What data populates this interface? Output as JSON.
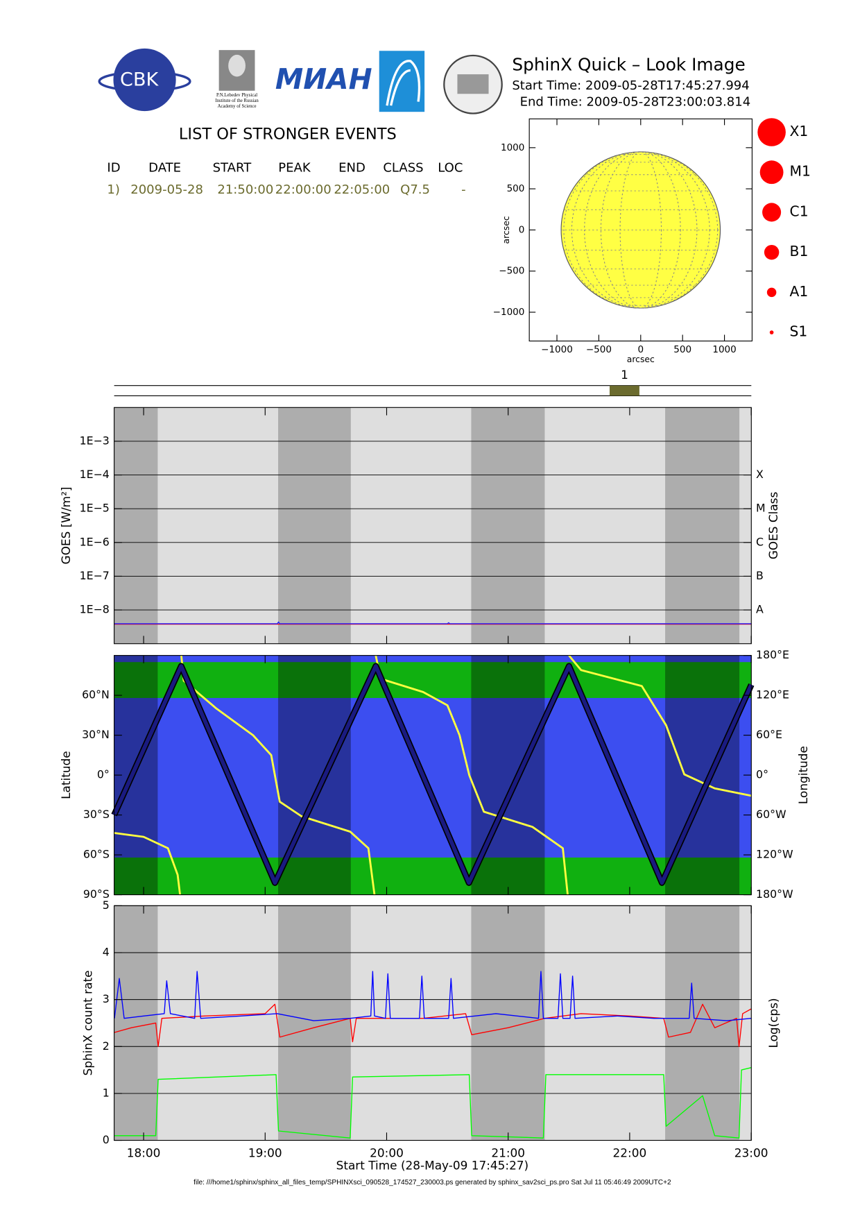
{
  "header": {
    "title": "SphinX Quick – Look Image",
    "start_time": "Start Time: 2009-05-28T17:45:27.994",
    "end_time": "End Time: 2009-05-28T23:00:03.814"
  },
  "logos": {
    "cbk": "CBK",
    "lebedev": [
      "P.N.Lebedev Physical",
      "Institute of the Russian",
      "Academy of Science"
    ],
    "mian": "МИАН"
  },
  "events_table": {
    "title": "LIST OF STRONGER EVENTS",
    "columns": [
      "ID",
      "DATE",
      "START",
      "PEAK",
      "END",
      "CLASS",
      "LOC"
    ],
    "rows": [
      [
        "1)",
        "2009-05-28",
        "21:50:00",
        "22:00:00",
        "22:05:00",
        "Q7.5",
        "-"
      ]
    ]
  },
  "flare_classes": [
    "X1",
    "M1",
    "C1",
    "B1",
    "A1",
    "S1"
  ],
  "chart_data": [
    {
      "type": "sun_disk",
      "xlabel": "arcsec",
      "ylabel": "arcsec",
      "xlim": [
        -1330,
        1330
      ],
      "ylim": [
        -1350,
        1350
      ],
      "xticks": [
        {
          "value": -1000,
          "label": "−1000"
        },
        {
          "value": -500,
          "label": "−500"
        },
        0,
        500,
        1000
      ],
      "yticks": [
        {
          "value": -1000,
          "label": "−1000"
        },
        {
          "value": -500,
          "label": "−500"
        },
        0,
        500,
        1000
      ],
      "radius": 950,
      "color": "#ffff44"
    },
    {
      "type": "timeline",
      "events": [
        {
          "label": "1",
          "start": 21.835,
          "end": 22.08
        }
      ],
      "color": "#6b6b2e"
    },
    {
      "type": "line",
      "ylabel": "GOES [W/m²]",
      "y2label": "GOES Class",
      "log_scale": true,
      "grid": true,
      "ylim": [
        1e-09,
        0.01
      ],
      "yticks": [
        {
          "value": 1e-08,
          "label": "1E−8"
        },
        {
          "value": 1e-07,
          "label": "1E−7"
        },
        {
          "value": 1e-06,
          "label": "1E−6"
        },
        {
          "value": 1e-05,
          "label": "1E−5"
        },
        {
          "value": 0.0001,
          "label": "1E−4"
        },
        {
          "value": 0.001,
          "label": "1E−3"
        }
      ],
      "y2ticks": [
        {
          "value": 1e-08,
          "label": "A"
        },
        {
          "value": 1e-07,
          "label": "B"
        },
        {
          "value": 1e-06,
          "label": "C"
        },
        {
          "value": 1e-05,
          "label": "M"
        },
        {
          "value": 0.0001,
          "label": "X"
        }
      ],
      "series": [
        {
          "color": "#ff0000",
          "x": [
            17.7575,
            23.0011
          ],
          "values": [
            3.8e-09,
            3.8e-09
          ]
        },
        {
          "color": "#2020ff",
          "x": [
            17.7575,
            19.1,
            19.11,
            19.12,
            20.5,
            20.51,
            20.52,
            23.0011
          ],
          "values": [
            3.9e-09,
            3.9e-09,
            4.4e-09,
            3.9e-09,
            3.9e-09,
            4.2e-09,
            3.9e-09,
            3.9e-09
          ]
        }
      ]
    },
    {
      "type": "line",
      "ylabel": "Latitude",
      "y2label": "Longitude",
      "ylim": [
        -90,
        90
      ],
      "y2lim": [
        -180,
        180
      ],
      "yticks": [
        {
          "value": -90,
          "label": "90°S"
        },
        {
          "value": -60,
          "label": "60°S"
        },
        {
          "value": -30,
          "label": "30°S"
        },
        {
          "value": 0,
          "label": "0°"
        },
        {
          "value": 30,
          "label": "30°N"
        },
        {
          "value": 60,
          "label": "60°N"
        }
      ],
      "y2ticks": [
        {
          "value": -180,
          "label": "180°W"
        },
        {
          "value": -120,
          "label": "120°W"
        },
        {
          "value": -60,
          "label": "60°W"
        },
        {
          "value": 0,
          "label": "0°"
        },
        {
          "value": 60,
          "label": "60°E"
        },
        {
          "value": 120,
          "label": "120°E"
        },
        {
          "value": 180,
          "label": "180°E"
        }
      ],
      "series": [
        {
          "color": "#ffff40",
          "axis": "y2",
          "x": [
            17.7575,
            18.0,
            18.2,
            18.28,
            18.3,
            18.305,
            18.31,
            18.33,
            18.6,
            18.9,
            19.05,
            19.12,
            19.3,
            19.7,
            19.85,
            19.9,
            19.905,
            19.91,
            19.95,
            20.3,
            20.5,
            20.6,
            20.68,
            20.8,
            21.2,
            21.45,
            21.49,
            21.495,
            21.5,
            21.6,
            22.1,
            22.3,
            22.45,
            22.7,
            23.0011
          ],
          "values": [
            -87,
            -93,
            -110,
            -150,
            -180,
            null,
            180,
            142,
            100,
            60,
            30,
            -40,
            -62,
            -85,
            -110,
            -180,
            null,
            180,
            145,
            125,
            105,
            60,
            0,
            -55,
            -78,
            -110,
            -180,
            null,
            180,
            158,
            134,
            75,
            1,
            -20,
            -31
          ]
        },
        {
          "color": "#1a1a80",
          "x": [
            17.7575,
            18.309,
            19.081,
            19.911,
            20.677,
            21.501,
            22.266,
            23.0011
          ],
          "values": [
            -30,
            82,
            -81,
            82,
            -81,
            82,
            -81,
            68
          ]
        }
      ]
    },
    {
      "type": "line",
      "ylabel": "SphinX count rate",
      "y2label": "Log(cps)",
      "xlabel": "Start Time (28-May-09 17:45:27)",
      "grid": true,
      "xlim": [
        17.7575,
        23.0011
      ],
      "xticks": [
        {
          "value": 18,
          "label": "18:00"
        },
        {
          "value": 19,
          "label": "19:00"
        },
        {
          "value": 20,
          "label": "20:00"
        },
        {
          "value": 21,
          "label": "21:00"
        },
        {
          "value": 22,
          "label": "22:00"
        },
        {
          "value": 23,
          "label": "23:00"
        }
      ],
      "shading": [
        [
          17.7575,
          18.116
        ],
        [
          19.107,
          19.705
        ],
        [
          20.696,
          21.301
        ],
        [
          22.292,
          22.903
        ]
      ],
      "ylim": [
        0,
        5
      ],
      "yticks": [
        0,
        1,
        2,
        3,
        4,
        5
      ],
      "series": [
        {
          "color": "#00ff00",
          "x": [
            17.76,
            18.1,
            18.12,
            19.09,
            19.11,
            19.7,
            19.72,
            20.68,
            20.7,
            21.29,
            21.31,
            22.28,
            22.3,
            22.6,
            22.7,
            22.9,
            22.92,
            23.0
          ],
          "values": [
            0.1,
            0.1,
            1.3,
            1.4,
            0.2,
            0.05,
            1.35,
            1.4,
            0.1,
            0.05,
            1.4,
            1.4,
            0.3,
            0.95,
            0.1,
            0.05,
            1.5,
            1.55
          ]
        },
        {
          "color": "#ff0000",
          "x": [
            17.76,
            17.9,
            18.1,
            18.12,
            18.15,
            18.5,
            19.0,
            19.08,
            19.12,
            19.4,
            19.7,
            19.72,
            19.75,
            20.3,
            20.65,
            20.7,
            21.0,
            21.3,
            21.6,
            22.0,
            22.28,
            22.32,
            22.5,
            22.6,
            22.7,
            22.88,
            22.9,
            22.93,
            23.0
          ],
          "values": [
            2.3,
            2.4,
            2.5,
            2.0,
            2.6,
            2.65,
            2.7,
            2.9,
            2.2,
            2.4,
            2.6,
            2.1,
            2.6,
            2.6,
            2.7,
            2.25,
            2.4,
            2.6,
            2.7,
            2.65,
            2.6,
            2.2,
            2.3,
            2.9,
            2.4,
            2.6,
            2.0,
            2.7,
            2.8
          ]
        },
        {
          "color": "#0000ff",
          "x": [
            17.76,
            17.8,
            17.84,
            18.0,
            18.17,
            18.19,
            18.22,
            18.42,
            18.44,
            18.47,
            18.8,
            19.1,
            19.4,
            19.7,
            19.87,
            19.885,
            19.9,
            19.99,
            20.01,
            20.03,
            20.27,
            20.29,
            20.31,
            20.51,
            20.53,
            20.55,
            20.9,
            21.25,
            21.27,
            21.29,
            21.41,
            21.43,
            21.45,
            21.51,
            21.53,
            21.55,
            21.9,
            22.2,
            22.49,
            22.51,
            22.53,
            22.8,
            23.0
          ],
          "values": [
            2.6,
            3.45,
            2.6,
            2.65,
            2.7,
            3.4,
            2.7,
            2.6,
            3.6,
            2.6,
            2.65,
            2.7,
            2.55,
            2.6,
            2.65,
            3.6,
            2.65,
            2.6,
            3.55,
            2.6,
            2.6,
            3.5,
            2.6,
            2.6,
            3.45,
            2.6,
            2.7,
            2.6,
            3.6,
            2.6,
            2.6,
            3.55,
            2.6,
            2.6,
            3.5,
            2.6,
            2.65,
            2.6,
            2.6,
            3.35,
            2.6,
            2.55,
            2.6
          ]
        }
      ]
    }
  ],
  "footer": "file: ///home1/sphinx/sphinx_all_files_temp/SPHINXsci_090528_174527_230003.ps generated by sphinx_sav2sci_ps.pro Sat Jul 11 05:46:49 2009UTC+2"
}
